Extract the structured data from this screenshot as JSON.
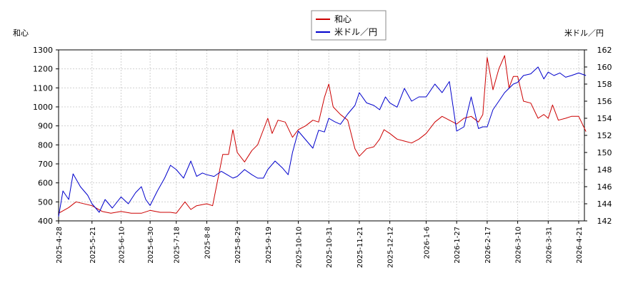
{
  "chart_data": {
    "type": "line",
    "y_left_label": "和心",
    "y_right_label": "米ドル／円",
    "y_left_range": [
      400,
      1300
    ],
    "y_right_range": [
      142,
      162
    ],
    "y_left_ticks": [
      "400",
      "500",
      "600",
      "700",
      "800",
      "900",
      "1000",
      "1100",
      "1200",
      "1300"
    ],
    "y_right_ticks": [
      "142",
      "144",
      "146",
      "148",
      "150",
      "152",
      "154",
      "156",
      "158",
      "160",
      "162"
    ],
    "x_ticks": [
      "2025-4-28",
      "2025-5-21",
      "2025-6-10",
      "2025-6-30",
      "2025-7-18",
      "2025-8-8",
      "2025-8-29",
      "2025-9-19",
      "2025-10-10",
      "2025-10-31",
      "2025-11-21",
      "2025-12-12",
      "2026-1-6",
      "2026-1-27",
      "2026-2-17",
      "2026-3-10",
      "2026-3-31",
      "2026-4-21"
    ],
    "grid": true,
    "legend_position": "top-center",
    "series": [
      {
        "name": "和心",
        "axis": "left",
        "color": "#cc0000",
        "points": [
          [
            "2025-4-28",
            440
          ],
          [
            "2025-5-5",
            470
          ],
          [
            "2025-5-10",
            500
          ],
          [
            "2025-5-21",
            480
          ],
          [
            "2025-5-28",
            450
          ],
          [
            "2025-6-3",
            440
          ],
          [
            "2025-6-10",
            450
          ],
          [
            "2025-6-17",
            440
          ],
          [
            "2025-6-24",
            440
          ],
          [
            "2025-6-30",
            455
          ],
          [
            "2025-7-7",
            445
          ],
          [
            "2025-7-14",
            445
          ],
          [
            "2025-7-18",
            440
          ],
          [
            "2025-7-24",
            500
          ],
          [
            "2025-7-28",
            460
          ],
          [
            "2025-8-1",
            480
          ],
          [
            "2025-8-8",
            490
          ],
          [
            "2025-8-12",
            480
          ],
          [
            "2025-8-19",
            750
          ],
          [
            "2025-8-23",
            750
          ],
          [
            "2025-8-26",
            880
          ],
          [
            "2025-8-29",
            760
          ],
          [
            "2025-9-3",
            710
          ],
          [
            "2025-9-8",
            770
          ],
          [
            "2025-9-12",
            800
          ],
          [
            "2025-9-16",
            880
          ],
          [
            "2025-9-19",
            940
          ],
          [
            "2025-9-22",
            860
          ],
          [
            "2025-9-26",
            930
          ],
          [
            "2025-10-1",
            920
          ],
          [
            "2025-10-6",
            840
          ],
          [
            "2025-10-10",
            880
          ],
          [
            "2025-10-15",
            900
          ],
          [
            "2025-10-20",
            930
          ],
          [
            "2025-10-24",
            920
          ],
          [
            "2025-10-28",
            1050
          ],
          [
            "2025-10-31",
            1120
          ],
          [
            "2025-11-3",
            1000
          ],
          [
            "2025-11-8",
            960
          ],
          [
            "2025-11-13",
            930
          ],
          [
            "2025-11-18",
            780
          ],
          [
            "2025-11-21",
            740
          ],
          [
            "2025-11-26",
            780
          ],
          [
            "2025-12-1",
            790
          ],
          [
            "2025-12-5",
            830
          ],
          [
            "2025-12-8",
            880
          ],
          [
            "2025-12-12",
            860
          ],
          [
            "2025-12-17",
            830
          ],
          [
            "2025-12-22",
            820
          ],
          [
            "2025-12-27",
            810
          ],
          [
            "2026-1-1",
            830
          ],
          [
            "2026-1-6",
            860
          ],
          [
            "2026-1-12",
            920
          ],
          [
            "2026-1-17",
            950
          ],
          [
            "2026-1-22",
            930
          ],
          [
            "2026-1-27",
            910
          ],
          [
            "2026-2-1",
            940
          ],
          [
            "2026-2-6",
            950
          ],
          [
            "2026-2-11",
            920
          ],
          [
            "2026-2-14",
            960
          ],
          [
            "2026-2-17",
            1260
          ],
          [
            "2026-2-21",
            1090
          ],
          [
            "2026-2-25",
            1200
          ],
          [
            "2026-3-1",
            1270
          ],
          [
            "2026-3-4",
            1100
          ],
          [
            "2026-3-7",
            1160
          ],
          [
            "2026-3-10",
            1160
          ],
          [
            "2026-3-14",
            1030
          ],
          [
            "2026-3-19",
            1020
          ],
          [
            "2026-3-24",
            940
          ],
          [
            "2026-3-28",
            960
          ],
          [
            "2026-3-31",
            940
          ],
          [
            "2026-4-3",
            1010
          ],
          [
            "2026-4-7",
            930
          ],
          [
            "2026-4-12",
            940
          ],
          [
            "2026-4-16",
            950
          ],
          [
            "2026-4-21",
            950
          ],
          [
            "2026-4-26",
            870
          ]
        ]
      },
      {
        "name": "米ドル／円",
        "axis": "right",
        "color": "#0000cc",
        "points": [
          [
            "2025-4-28",
            142.5
          ],
          [
            "2025-5-1",
            145.5
          ],
          [
            "2025-5-5",
            144.5
          ],
          [
            "2025-5-8",
            147.5
          ],
          [
            "2025-5-13",
            146.0
          ],
          [
            "2025-5-18",
            145.0
          ],
          [
            "2025-5-21",
            144.0
          ],
          [
            "2025-5-26",
            143.0
          ],
          [
            "2025-5-30",
            144.5
          ],
          [
            "2025-6-4",
            143.5
          ],
          [
            "2025-6-10",
            144.8
          ],
          [
            "2025-6-15",
            144.0
          ],
          [
            "2025-6-20",
            145.3
          ],
          [
            "2025-6-24",
            146.0
          ],
          [
            "2025-6-27",
            144.5
          ],
          [
            "2025-6-30",
            143.8
          ],
          [
            "2025-7-5",
            145.5
          ],
          [
            "2025-7-10",
            147.0
          ],
          [
            "2025-7-14",
            148.5
          ],
          [
            "2025-7-18",
            148.0
          ],
          [
            "2025-7-23",
            147.0
          ],
          [
            "2025-7-28",
            149.0
          ],
          [
            "2025-8-1",
            147.2
          ],
          [
            "2025-8-5",
            147.6
          ],
          [
            "2025-8-8",
            147.4
          ],
          [
            "2025-8-13",
            147.2
          ],
          [
            "2025-8-18",
            147.8
          ],
          [
            "2025-8-22",
            147.4
          ],
          [
            "2025-8-26",
            147.0
          ],
          [
            "2025-8-29",
            147.2
          ],
          [
            "2025-9-3",
            148.0
          ],
          [
            "2025-9-8",
            147.4
          ],
          [
            "2025-9-12",
            147.0
          ],
          [
            "2025-9-16",
            147.0
          ],
          [
            "2025-9-19",
            148.0
          ],
          [
            "2025-9-24",
            149.0
          ],
          [
            "2025-9-29",
            148.2
          ],
          [
            "2025-10-3",
            147.4
          ],
          [
            "2025-10-6",
            150.0
          ],
          [
            "2025-10-10",
            152.5
          ],
          [
            "2025-10-15",
            151.5
          ],
          [
            "2025-10-20",
            150.5
          ],
          [
            "2025-10-24",
            152.6
          ],
          [
            "2025-10-28",
            152.4
          ],
          [
            "2025-10-31",
            154.0
          ],
          [
            "2025-11-4",
            153.6
          ],
          [
            "2025-11-8",
            153.3
          ],
          [
            "2025-11-13",
            154.5
          ],
          [
            "2025-11-18",
            155.5
          ],
          [
            "2025-11-21",
            157.0
          ],
          [
            "2025-11-26",
            155.8
          ],
          [
            "2025-12-1",
            155.5
          ],
          [
            "2025-12-5",
            155.0
          ],
          [
            "2025-12-9",
            156.5
          ],
          [
            "2025-12-12",
            155.8
          ],
          [
            "2025-12-17",
            155.3
          ],
          [
            "2025-12-22",
            157.5
          ],
          [
            "2025-12-27",
            156.0
          ],
          [
            "2026-1-1",
            156.5
          ],
          [
            "2026-1-6",
            156.5
          ],
          [
            "2026-1-12",
            158.0
          ],
          [
            "2026-1-17",
            157.0
          ],
          [
            "2026-1-22",
            158.3
          ],
          [
            "2026-1-27",
            152.5
          ],
          [
            "2026-2-1",
            153.0
          ],
          [
            "2026-2-6",
            156.5
          ],
          [
            "2026-2-11",
            152.8
          ],
          [
            "2026-2-14",
            153.0
          ],
          [
            "2026-2-17",
            153.0
          ],
          [
            "2026-2-21",
            155.0
          ],
          [
            "2026-2-25",
            156.0
          ],
          [
            "2026-3-1",
            157.0
          ],
          [
            "2026-3-4",
            157.5
          ],
          [
            "2026-3-7",
            158.0
          ],
          [
            "2026-3-10",
            158.2
          ],
          [
            "2026-3-14",
            159.0
          ],
          [
            "2026-3-19",
            159.2
          ],
          [
            "2026-3-24",
            160.0
          ],
          [
            "2026-3-28",
            158.6
          ],
          [
            "2026-3-31",
            159.4
          ],
          [
            "2026-4-4",
            159.0
          ],
          [
            "2026-4-8",
            159.3
          ],
          [
            "2026-4-12",
            158.8
          ],
          [
            "2026-4-16",
            159.0
          ],
          [
            "2026-4-21",
            159.3
          ],
          [
            "2026-4-26",
            159.0
          ]
        ]
      }
    ]
  }
}
